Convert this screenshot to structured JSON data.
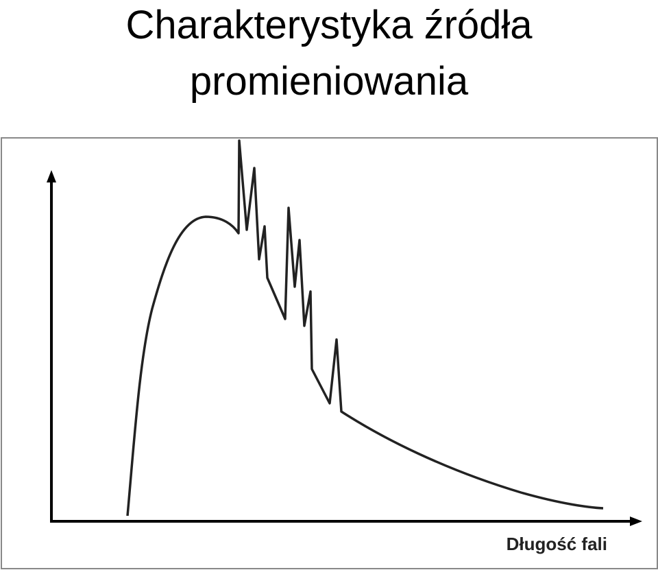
{
  "header": {
    "title": "Charakterystyka źródła promieniowania"
  },
  "diagram": {
    "x_axis_label": "Długość fali"
  }
}
